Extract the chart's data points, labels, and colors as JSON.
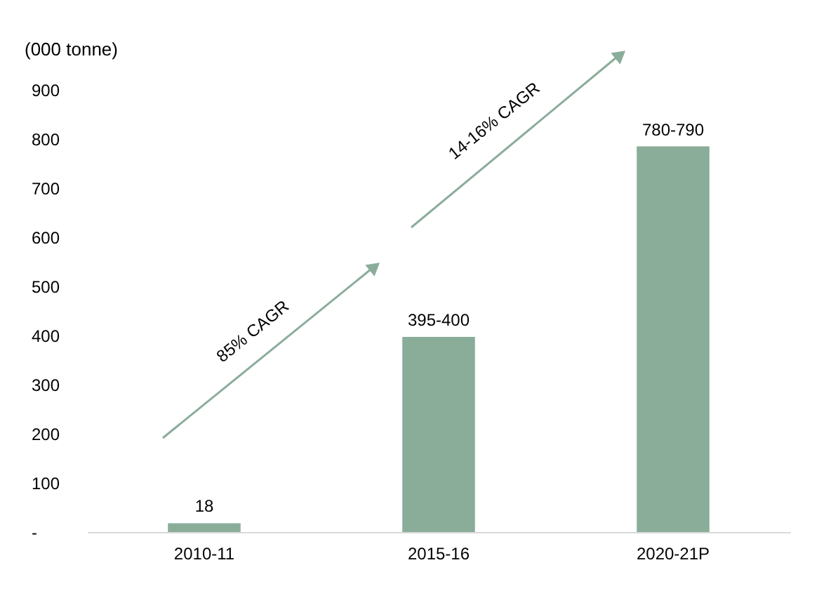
{
  "chart_data": {
    "type": "bar",
    "ylabel": "(000 tonne)",
    "categories": [
      "2010-11",
      "2015-16",
      "2020-21P"
    ],
    "values": [
      18,
      397,
      785
    ],
    "value_labels": [
      "18",
      "395-400",
      "780-790"
    ],
    "color": "#8aad9a",
    "ylim": [
      0,
      900
    ],
    "yticks": [
      {
        "value": 0,
        "label": "-"
      },
      100,
      200,
      300,
      400,
      500,
      600,
      700,
      800,
      900
    ],
    "grid": false,
    "annotations": [
      "85% CAGR",
      "14-16% CAGR"
    ]
  }
}
